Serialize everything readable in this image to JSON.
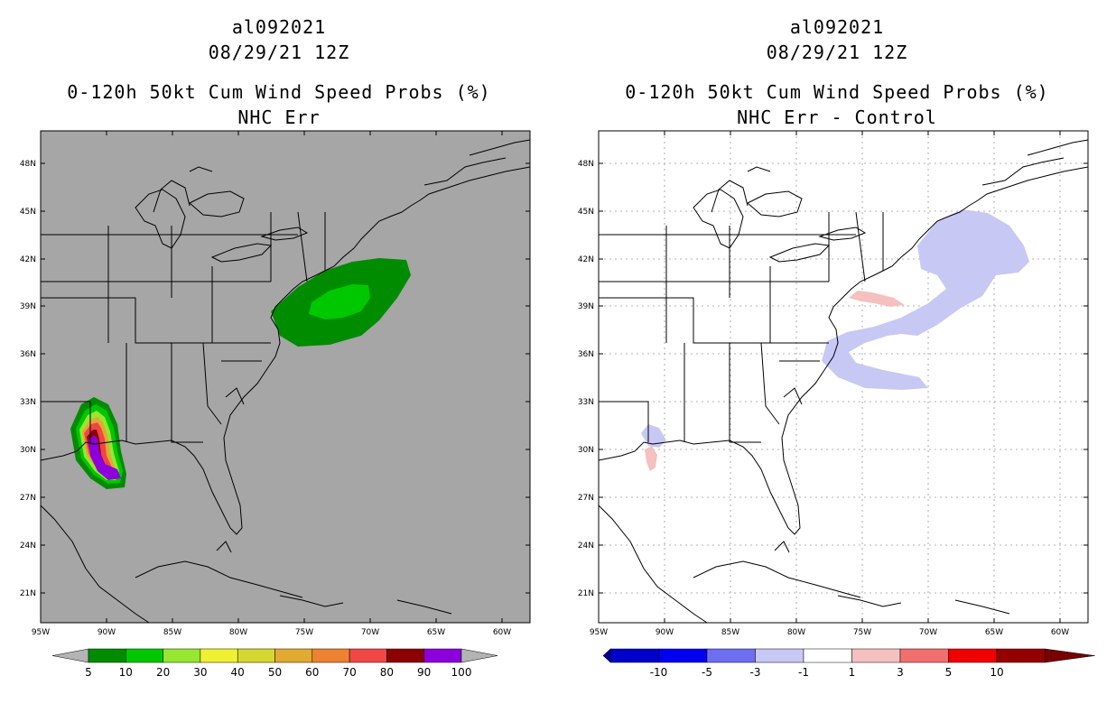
{
  "panels": [
    {
      "id": "left",
      "storm_id": "al092021",
      "datetime": "08/29/21 12Z",
      "product": "0-120h 50kt Cum Wind Speed Probs (%)",
      "subtitle": "NHC Err",
      "background": "#a6a6a6",
      "colorbar": {
        "labels": [
          "5",
          "10",
          "20",
          "30",
          "40",
          "50",
          "60",
          "70",
          "80",
          "90",
          "100"
        ],
        "colors": [
          "#008c00",
          "#00c800",
          "#96e632",
          "#f0f032",
          "#d7d732",
          "#e1aa32",
          "#ee8232",
          "#f04646",
          "#8c0000",
          "#8c00dc"
        ],
        "end_color": "#b4b4b4"
      }
    },
    {
      "id": "right",
      "storm_id": "al092021",
      "datetime": "08/29/21 12Z",
      "product": "0-120h 50kt Cum Wind Speed Probs (%)",
      "subtitle": "NHC Err - Control",
      "background": "#ffffff",
      "colorbar": {
        "labels": [
          "-10",
          "-5",
          "-3",
          "-1",
          "1",
          "3",
          "5",
          "10"
        ],
        "colors": [
          "#0000c8",
          "#0000f0",
          "#6e6ef0",
          "#c8c8f5",
          "#ffffff",
          "#f5c0c0",
          "#f07070",
          "#f00000",
          "#960000"
        ],
        "end_left": "#000096",
        "end_right": "#780000"
      }
    }
  ],
  "axes": {
    "lat_labels": [
      "48N",
      "45N",
      "42N",
      "39N",
      "36N",
      "33N",
      "30N",
      "27N",
      "24N",
      "21N"
    ],
    "lon_labels": [
      "95W",
      "90W",
      "85W",
      "80W",
      "75W",
      "70W",
      "65W",
      "60W"
    ]
  },
  "map_features": {
    "land_outline": "coastline-and-state-boundaries",
    "left_shading": [
      "gulf-storm-track-probabilities",
      "northeast-storm-track-probabilities"
    ],
    "right_shading": [
      "northeast-blue-difference",
      "gulf-small-difference"
    ]
  }
}
